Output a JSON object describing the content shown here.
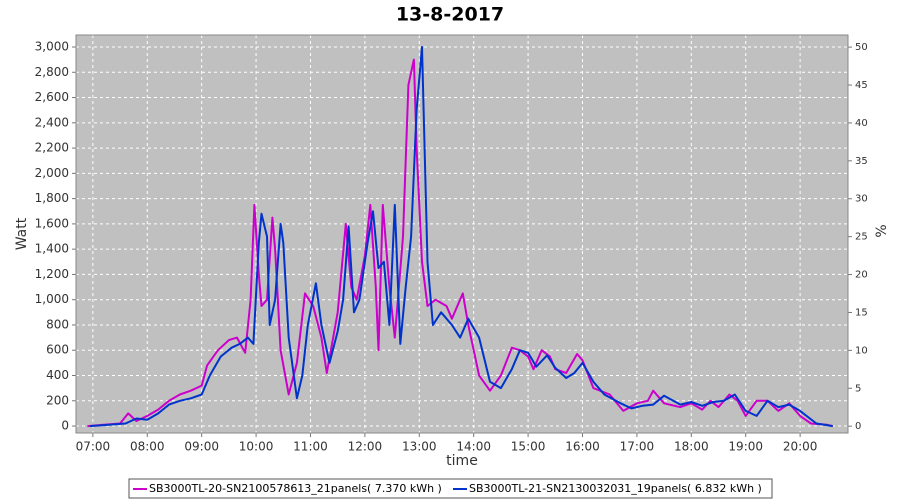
{
  "chart_data": {
    "type": "line",
    "title": "13-8-2017",
    "x_label": "time",
    "y_label": "Watt",
    "y2_label": "%",
    "xlim": [
      6.69,
      20.88
    ],
    "ylim": [
      -55,
      3095
    ],
    "y2lim": [
      -0.9,
      51.6
    ],
    "grid": true,
    "legend": "bottom",
    "xticks": [
      {
        "value": 7,
        "label": "07:00"
      },
      {
        "value": 8,
        "label": "08:00"
      },
      {
        "value": 9,
        "label": "09:00"
      },
      {
        "value": 10,
        "label": "10:00"
      },
      {
        "value": 11,
        "label": "11:00"
      },
      {
        "value": 12,
        "label": "12:00"
      },
      {
        "value": 13,
        "label": "13:00"
      },
      {
        "value": 14,
        "label": "14:00"
      },
      {
        "value": 15,
        "label": "15:00"
      },
      {
        "value": 16,
        "label": "16:00"
      },
      {
        "value": 17,
        "label": "17:00"
      },
      {
        "value": 18,
        "label": "18:00"
      },
      {
        "value": 19,
        "label": "19:00"
      },
      {
        "value": 20,
        "label": "20:00"
      }
    ],
    "yticks": [
      0,
      200,
      400,
      600,
      800,
      {
        "value": 1000,
        "label": "1,000"
      },
      {
        "value": 1200,
        "label": "1,200"
      },
      {
        "value": 1400,
        "label": "1,400"
      },
      {
        "value": 1600,
        "label": "1,600"
      },
      {
        "value": 1800,
        "label": "1,800"
      },
      {
        "value": 2000,
        "label": "2,000"
      },
      {
        "value": 2200,
        "label": "2,200"
      },
      {
        "value": 2400,
        "label": "2,400"
      },
      {
        "value": 2600,
        "label": "2,600"
      },
      {
        "value": 2800,
        "label": "2,800"
      },
      {
        "value": 3000,
        "label": "3,000"
      }
    ],
    "y2ticks": [
      0,
      5,
      10,
      15,
      20,
      25,
      30,
      35,
      40,
      45,
      50
    ],
    "series": [
      {
        "name": "SB3000TL-20-SN2100578613_21panels( 7.370 kWh )",
        "color": "#cc00cc",
        "x": [
          6.9,
          7.2,
          7.5,
          7.65,
          7.8,
          8.0,
          8.2,
          8.4,
          8.6,
          8.8,
          9.0,
          9.1,
          9.3,
          9.5,
          9.65,
          9.8,
          9.9,
          9.97,
          10.05,
          10.1,
          10.2,
          10.3,
          10.35,
          10.45,
          10.6,
          10.75,
          10.9,
          11.05,
          11.2,
          11.3,
          11.5,
          11.65,
          11.75,
          11.85,
          12.0,
          12.1,
          12.2,
          12.25,
          12.33,
          12.45,
          12.55,
          12.7,
          12.8,
          12.9,
          12.95,
          13.05,
          13.15,
          13.3,
          13.5,
          13.6,
          13.8,
          13.9,
          14.1,
          14.3,
          14.5,
          14.7,
          14.85,
          15.0,
          15.1,
          15.25,
          15.4,
          15.5,
          15.7,
          15.9,
          16.0,
          16.2,
          16.5,
          16.75,
          17.0,
          17.2,
          17.3,
          17.5,
          17.8,
          18.0,
          18.2,
          18.35,
          18.5,
          18.7,
          18.85,
          19.0,
          19.2,
          19.4,
          19.6,
          19.8,
          20.0,
          20.2,
          20.5,
          20.6
        ],
        "values": [
          0,
          10,
          20,
          100,
          40,
          80,
          130,
          200,
          250,
          280,
          320,
          480,
          600,
          680,
          700,
          580,
          1000,
          1750,
          1200,
          950,
          1000,
          1650,
          1400,
          600,
          250,
          500,
          1050,
          950,
          700,
          420,
          900,
          1600,
          1100,
          1000,
          1350,
          1750,
          1100,
          600,
          1750,
          1100,
          700,
          1500,
          2700,
          2900,
          2200,
          1300,
          950,
          1000,
          950,
          850,
          1050,
          800,
          400,
          280,
          400,
          620,
          600,
          550,
          450,
          600,
          550,
          450,
          420,
          570,
          520,
          300,
          250,
          120,
          180,
          200,
          280,
          180,
          150,
          180,
          130,
          200,
          150,
          250,
          200,
          80,
          200,
          200,
          120,
          180,
          80,
          20,
          10,
          0
        ]
      },
      {
        "name": "SB3000TL-21-SN2130032031_19panels( 6.832 kWh )",
        "color": "#0033cc",
        "x": [
          6.95,
          7.3,
          7.6,
          7.8,
          8.0,
          8.2,
          8.4,
          8.6,
          8.8,
          9.0,
          9.15,
          9.35,
          9.55,
          9.7,
          9.85,
          9.95,
          10.05,
          10.1,
          10.2,
          10.25,
          10.35,
          10.45,
          10.5,
          10.6,
          10.75,
          10.85,
          10.95,
          11.1,
          11.2,
          11.35,
          11.5,
          11.6,
          11.7,
          11.8,
          11.9,
          12.05,
          12.15,
          12.25,
          12.35,
          12.45,
          12.55,
          12.65,
          12.75,
          12.85,
          12.95,
          13.05,
          13.15,
          13.25,
          13.4,
          13.6,
          13.75,
          13.9,
          14.1,
          14.3,
          14.5,
          14.7,
          14.85,
          15.0,
          15.15,
          15.35,
          15.5,
          15.7,
          15.85,
          16.0,
          16.2,
          16.4,
          16.7,
          16.9,
          17.1,
          17.3,
          17.5,
          17.8,
          18.0,
          18.2,
          18.4,
          18.6,
          18.8,
          19.0,
          19.2,
          19.4,
          19.6,
          19.8,
          20.0,
          20.3,
          20.6
        ],
        "values": [
          0,
          10,
          20,
          60,
          50,
          100,
          170,
          200,
          220,
          250,
          400,
          550,
          620,
          650,
          700,
          650,
          1450,
          1680,
          1500,
          800,
          1000,
          1600,
          1450,
          700,
          220,
          400,
          800,
          1130,
          800,
          500,
          750,
          1000,
          1580,
          900,
          1000,
          1450,
          1700,
          1250,
          1300,
          800,
          1750,
          650,
          1100,
          1500,
          2500,
          3000,
          1300,
          800,
          900,
          800,
          700,
          850,
          700,
          350,
          300,
          450,
          600,
          580,
          470,
          560,
          460,
          380,
          420,
          500,
          350,
          250,
          180,
          140,
          160,
          170,
          240,
          170,
          190,
          160,
          190,
          200,
          250,
          120,
          80,
          200,
          150,
          170,
          120,
          20,
          0
        ]
      }
    ]
  }
}
